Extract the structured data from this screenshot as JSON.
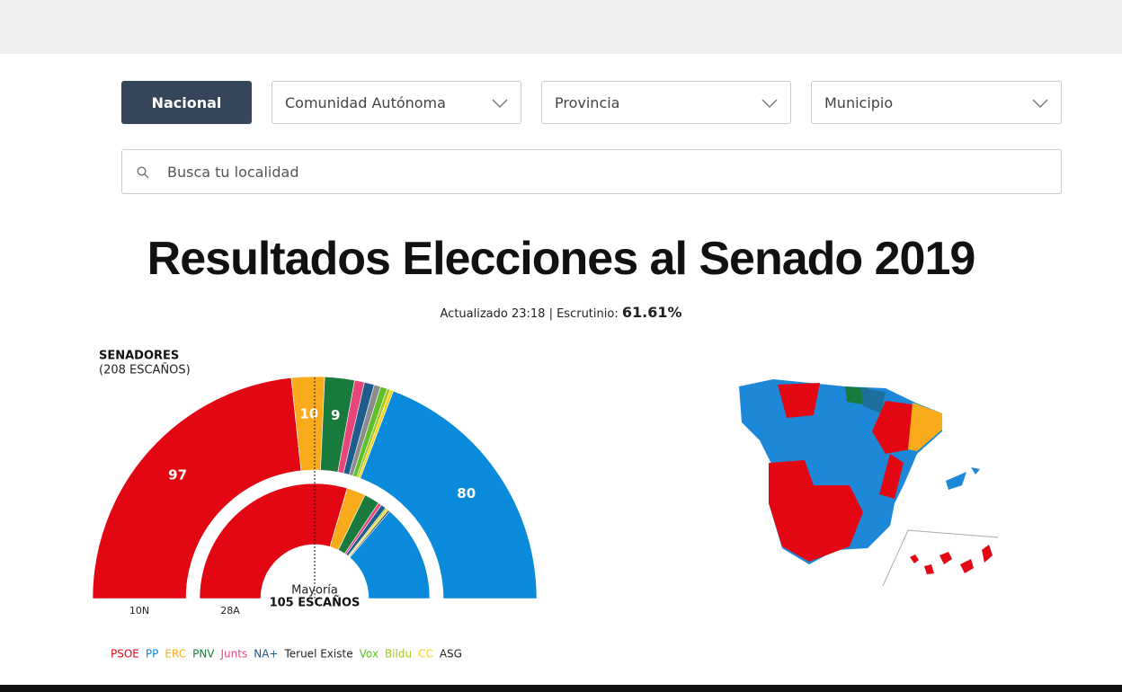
{
  "nav": {
    "national": "Nacional",
    "community": "Comunidad Autónoma",
    "province": "Provincia",
    "municipality": "Municipio",
    "search": "Busca tu localidad"
  },
  "title": "Resultados Elecciones al Senado 2019",
  "updated": {
    "text": "Actualizado 23:18 | Escrutinio:",
    "percent": "61.61%"
  },
  "chart_data": {
    "type": "parliament",
    "title": "SENADORES",
    "subtitle": "(208 ESCAÑOS)",
    "rings": [
      "10N",
      "28A"
    ],
    "majority": {
      "label": "Mayoría",
      "seats": "105 ESCAÑOS"
    },
    "parties": [
      {
        "name": "PSOE",
        "color": "#e30613",
        "values": [
          97,
          123
        ]
      },
      {
        "name": "PP",
        "color": "#0a8ada",
        "values": [
          80,
          57
        ]
      },
      {
        "name": "ERC",
        "color": "#f9ab1c",
        "values": [
          10,
          11
        ]
      },
      {
        "name": "PNV",
        "color": "#197a3e",
        "values": [
          9,
          9
        ]
      },
      {
        "name": "Junts",
        "color": "#e8457a",
        "values": [
          3,
          2
        ]
      },
      {
        "name": "NA+",
        "color": "#1d5c8c",
        "values": [
          3,
          3
        ]
      },
      {
        "name": "Teruel Existe",
        "color": "#8c8c8c",
        "values": [
          2,
          0
        ]
      },
      {
        "name": "Vox",
        "color": "#5fbf2a",
        "values": [
          2,
          0
        ]
      },
      {
        "name": "Bildu",
        "color": "#a9c61f",
        "values": [
          1,
          1
        ]
      },
      {
        "name": "CC",
        "color": "#f3d21a",
        "values": [
          1,
          1
        ]
      },
      {
        "name": "ASG",
        "color": "#333333",
        "values": [
          0,
          1
        ]
      }
    ]
  }
}
